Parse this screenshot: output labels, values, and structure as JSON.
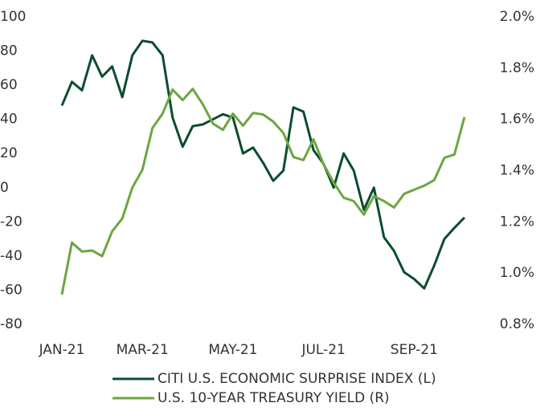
{
  "chart_data": {
    "type": "line",
    "categories": [
      "JAN-21",
      null,
      null,
      null,
      null,
      null,
      null,
      null,
      "MAR-21",
      null,
      null,
      null,
      null,
      null,
      null,
      null,
      null,
      "MAY-21",
      null,
      null,
      null,
      null,
      null,
      null,
      null,
      null,
      "JUL-21",
      null,
      null,
      null,
      null,
      null,
      null,
      null,
      null,
      "SEP-21",
      null,
      null,
      null,
      null,
      null
    ],
    "series": [
      {
        "name": "CITI U.S. ECONOMIC SURPRISE INDEX (L)",
        "color": "#0b4d2c",
        "values": [
          48,
          62,
          57,
          77.5,
          65,
          71,
          53,
          77.5,
          86,
          85,
          77.5,
          41,
          24,
          36,
          37,
          40,
          43,
          41,
          20,
          23.5,
          14.5,
          4,
          10,
          47,
          44.5,
          22,
          14,
          0,
          20,
          10,
          -13,
          0,
          -29,
          -37,
          -49.5,
          -53.5,
          -59,
          -45.5,
          -30,
          -23.5,
          -17.5
        ]
      },
      {
        "name": "U.S. 10-YEAR TREASURY YIELD (R)",
        "color": "#6da640",
        "axis": "y2",
        "values": [
          0.916,
          1.119,
          1.084,
          1.088,
          1.066,
          1.163,
          1.213,
          1.334,
          1.403,
          1.566,
          1.622,
          1.716,
          1.675,
          1.719,
          1.659,
          1.584,
          1.559,
          1.622,
          1.575,
          1.625,
          1.619,
          1.591,
          1.547,
          1.453,
          1.441,
          1.522,
          1.425,
          1.353,
          1.294,
          1.281,
          1.228,
          1.3,
          1.281,
          1.256,
          1.309,
          1.325,
          1.341,
          1.363,
          1.45,
          1.463,
          1.609
        ]
      }
    ],
    "ylim": [
      -80,
      100
    ],
    "yticks": [
      -80,
      -60,
      -40,
      -20,
      0,
      20,
      40,
      60,
      80,
      100
    ],
    "y2lim": [
      0.8,
      2.0
    ],
    "y2ticks": [
      {
        "value": 0.8,
        "label": "0.8%"
      },
      {
        "value": 1.0,
        "label": "1.0%"
      },
      {
        "value": 1.2,
        "label": "1.2%"
      },
      {
        "value": 1.4,
        "label": "1.4%"
      },
      {
        "value": 1.6,
        "label": "1.6%"
      },
      {
        "value": 1.8,
        "label": "1.8%"
      },
      {
        "value": 2.0,
        "label": "2.0%"
      }
    ],
    "grid": false
  }
}
